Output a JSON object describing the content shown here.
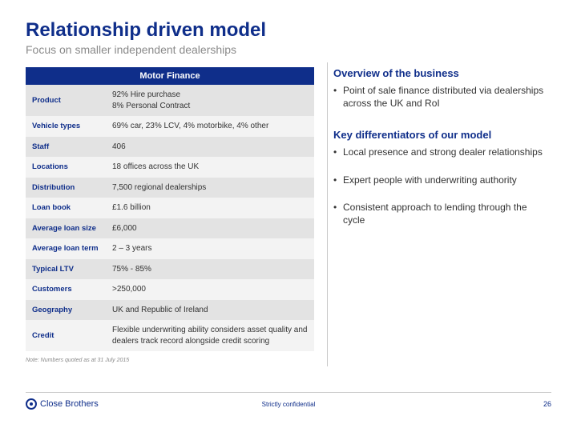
{
  "title": "Relationship driven model",
  "subtitle": "Focus on smaller independent dealerships",
  "table": {
    "header": "Motor Finance",
    "rows": [
      {
        "label": "Product",
        "value": "92% Hire purchase\n8% Personal Contract"
      },
      {
        "label": "Vehicle types",
        "value": "69% car, 23% LCV, 4% motorbike, 4% other"
      },
      {
        "label": "Staff",
        "value": "406"
      },
      {
        "label": "Locations",
        "value": "18 offices across the UK"
      },
      {
        "label": "Distribution",
        "value": "7,500 regional dealerships"
      },
      {
        "label": "Loan book",
        "value": "£1.6 billion"
      },
      {
        "label": "Average loan size",
        "value": "£6,000"
      },
      {
        "label": "Average loan term",
        "value": "2 – 3 years"
      },
      {
        "label": "Typical LTV",
        "value": "75% - 85%"
      },
      {
        "label": "Customers",
        "value": ">250,000"
      },
      {
        "label": "Geography",
        "value": "UK and Republic of Ireland"
      },
      {
        "label": "Credit",
        "value": "Flexible underwriting ability considers asset quality and dealers track record alongside credit scoring"
      }
    ]
  },
  "sections": [
    {
      "heading": "Overview of the business",
      "bullets": [
        "Point of sale finance distributed via dealerships across the UK and RoI"
      ]
    },
    {
      "heading": "Key differentiators of our model",
      "bullets": [
        "Local presence and strong dealer relationships",
        "Expert people with underwriting authority",
        "Consistent approach to lending through the cycle"
      ]
    }
  ],
  "footnote": "Note: Numbers quoted as at 31 July 2015",
  "footer": {
    "company": "Close Brothers",
    "confidentiality": "Strictly confidential",
    "page": "26"
  },
  "colors": {
    "brand": "#0f2e8a",
    "subtitle": "#8a8a8a",
    "band_a": "#e3e3e3",
    "band_b": "#f3f3f3",
    "text": "#333333",
    "divider": "#c9c9c9",
    "background": "#ffffff"
  }
}
